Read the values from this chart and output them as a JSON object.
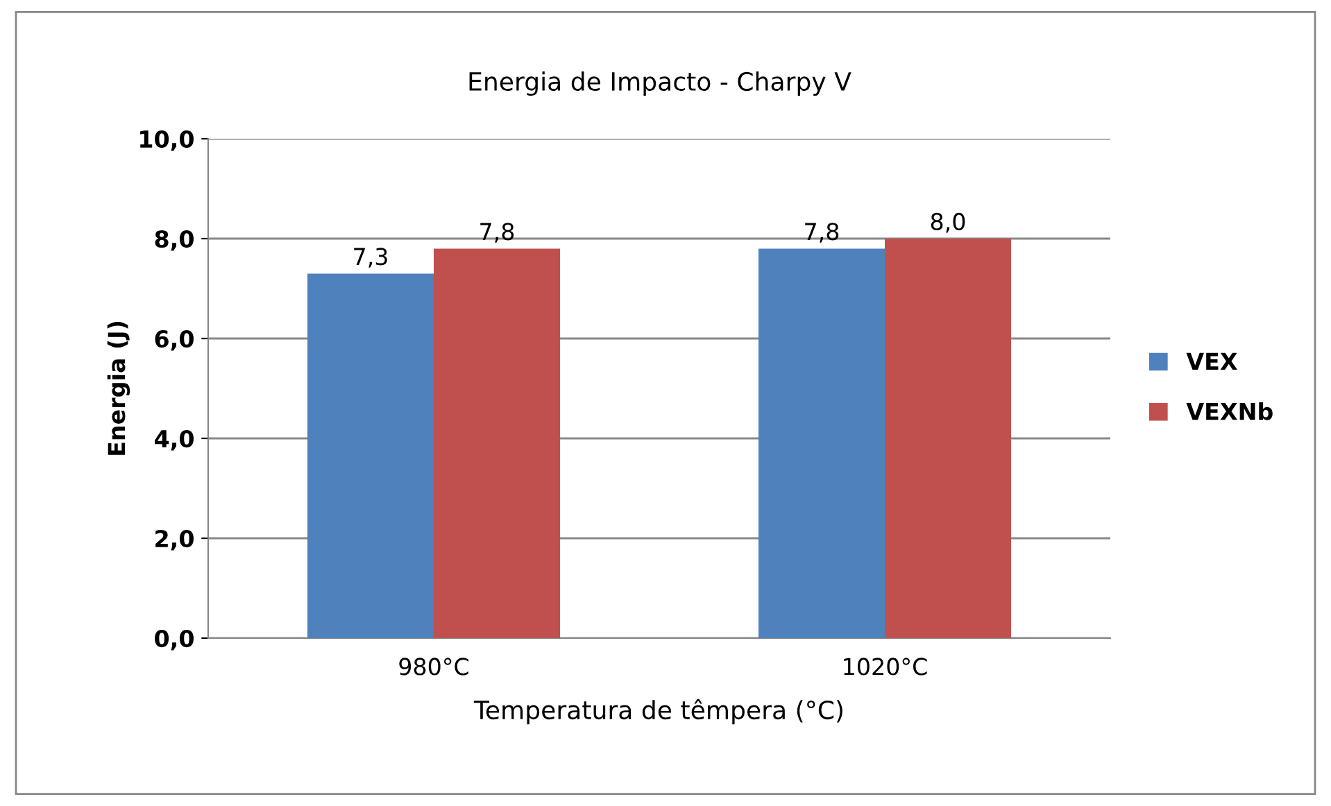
{
  "chart_data": {
    "type": "bar",
    "title": "Energia de Impacto - Charpy V",
    "xlabel": "Temperatura de têmpera (°C)",
    "ylabel": "Energia (J)",
    "categories": [
      "980°C",
      "1020°C"
    ],
    "series": [
      {
        "name": "VEX",
        "color": "#4f81bd",
        "values": [
          7.3,
          7.8
        ],
        "value_labels": [
          "7,3",
          "7,8"
        ]
      },
      {
        "name": "VEXNb",
        "color": "#c0504d",
        "values": [
          7.8,
          8.0
        ],
        "value_labels": [
          "7,8",
          "8,0"
        ]
      }
    ],
    "ylim": [
      0,
      10
    ],
    "yticks": [
      {
        "value": 0,
        "label": "0,0"
      },
      {
        "value": 2,
        "label": "2,0"
      },
      {
        "value": 4,
        "label": "4,0"
      },
      {
        "value": 6,
        "label": "6,0"
      },
      {
        "value": 8,
        "label": "8,0"
      },
      {
        "value": 10,
        "label": "10,0"
      }
    ],
    "grid": "y",
    "legend": "right"
  }
}
